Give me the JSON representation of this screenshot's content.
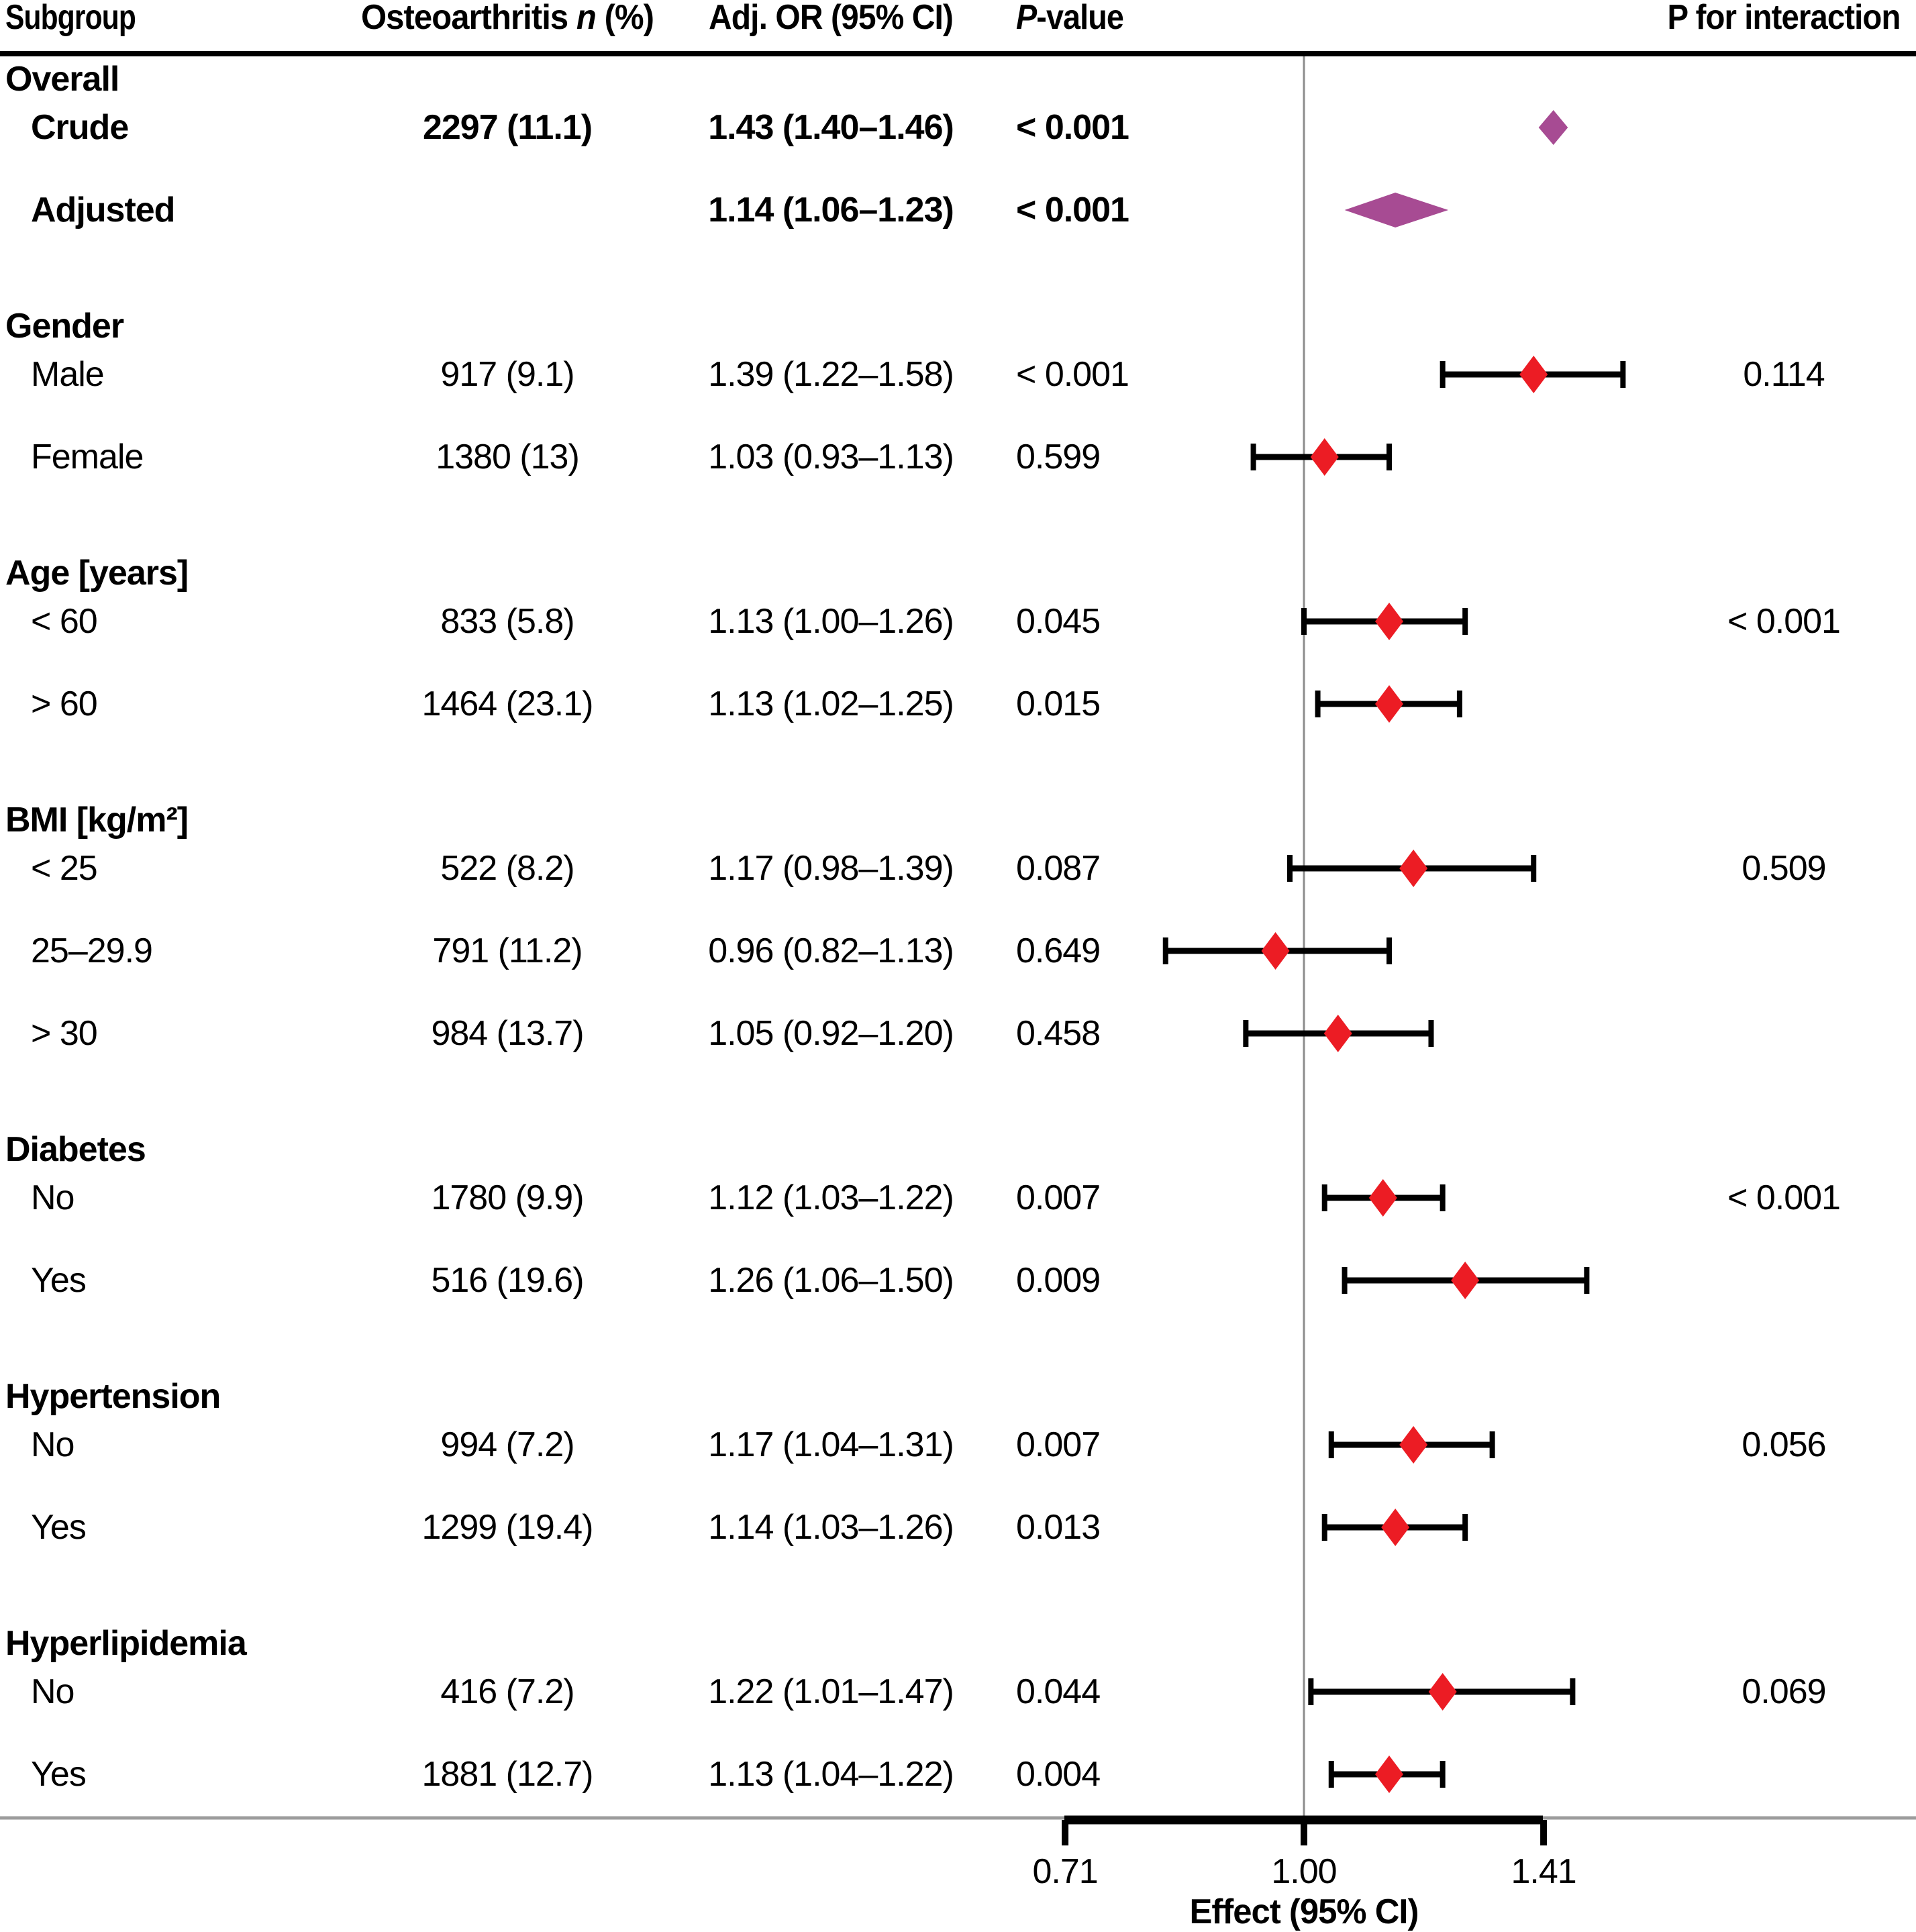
{
  "columns": {
    "subgroup": "Subgroup",
    "n_pre": "Osteoarthritis ",
    "n_italic": "n",
    "n_post": " (%)",
    "or": "Adj. OR (95% CI)",
    "p_italic": "P",
    "p_post": "-value",
    "p_interaction": "P for interaction"
  },
  "colors": {
    "marker_red": "#EC1C24",
    "summary_purple": "#A74B93",
    "ref_line": "#8C8C8C",
    "bottom_rule": "#9C9C9C",
    "top_rule": "#000000",
    "ci_black": "#000000",
    "text": "#000000"
  },
  "chart_data": {
    "type": "forest",
    "title": "",
    "xlabel": "Effect (95% CI)",
    "x_scale": "log",
    "ref_line": 1.0,
    "x_ticks": [
      0.71,
      1.0,
      1.41
    ],
    "x_tick_labels": [
      "0.71",
      "1.00",
      "1.41"
    ],
    "legend": "none",
    "grid": "off",
    "groups": [
      {
        "label": "Overall",
        "rows": [
          {
            "label": "Crude",
            "n": "2297 (11.1)",
            "or_text": "1.43 (1.40–1.46)",
            "or": 1.43,
            "lo": 1.4,
            "hi": 1.46,
            "p": "< 0.001",
            "p_interaction": "",
            "style": "summary",
            "bold": true
          },
          {
            "label": "Adjusted",
            "n": "",
            "or_text": "1.14 (1.06–1.23)",
            "or": 1.14,
            "lo": 1.06,
            "hi": 1.23,
            "p": "< 0.001",
            "p_interaction": "",
            "style": "summary",
            "bold": true
          }
        ]
      },
      {
        "label": "Gender",
        "rows": [
          {
            "label": "Male",
            "n": "917 (9.1)",
            "or_text": "1.39 (1.22–1.58)",
            "or": 1.39,
            "lo": 1.22,
            "hi": 1.58,
            "p": "< 0.001",
            "p_interaction": "0.114",
            "style": "point",
            "bold": false
          },
          {
            "label": "Female",
            "n": "1380 (13)",
            "or_text": "1.03 (0.93–1.13)",
            "or": 1.03,
            "lo": 0.93,
            "hi": 1.13,
            "p": "0.599",
            "p_interaction": "",
            "style": "point",
            "bold": false
          }
        ]
      },
      {
        "label": "Age [years]",
        "rows": [
          {
            "label": "< 60",
            "n": "833 (5.8)",
            "or_text": "1.13 (1.00–1.26)",
            "or": 1.13,
            "lo": 1.0,
            "hi": 1.26,
            "p": "0.045",
            "p_interaction": "< 0.001",
            "style": "point",
            "bold": false
          },
          {
            "label": "> 60",
            "n": "1464 (23.1)",
            "or_text": "1.13 (1.02–1.25)",
            "or": 1.13,
            "lo": 1.02,
            "hi": 1.25,
            "p": "0.015",
            "p_interaction": "",
            "style": "point",
            "bold": false
          }
        ]
      },
      {
        "label": "BMI [kg/m²]",
        "rows": [
          {
            "label": "< 25",
            "n": "522 (8.2)",
            "or_text": "1.17 (0.98–1.39)",
            "or": 1.17,
            "lo": 0.98,
            "hi": 1.39,
            "p": "0.087",
            "p_interaction": "0.509",
            "style": "point",
            "bold": false
          },
          {
            "label": "25–29.9",
            "n": "791 (11.2)",
            "or_text": "0.96 (0.82–1.13)",
            "or": 0.96,
            "lo": 0.82,
            "hi": 1.13,
            "p": "0.649",
            "p_interaction": "",
            "style": "point",
            "bold": false
          },
          {
            "label": "> 30",
            "n": "984 (13.7)",
            "or_text": "1.05 (0.92–1.20)",
            "or": 1.05,
            "lo": 0.92,
            "hi": 1.2,
            "p": "0.458",
            "p_interaction": "",
            "style": "point",
            "bold": false
          }
        ]
      },
      {
        "label": "Diabetes",
        "rows": [
          {
            "label": "No",
            "n": "1780 (9.9)",
            "or_text": "1.12 (1.03–1.22)",
            "or": 1.12,
            "lo": 1.03,
            "hi": 1.22,
            "p": "0.007",
            "p_interaction": "< 0.001",
            "style": "point",
            "bold": false
          },
          {
            "label": "Yes",
            "n": "516 (19.6)",
            "or_text": "1.26 (1.06–1.50)",
            "or": 1.26,
            "lo": 1.06,
            "hi": 1.5,
            "p": "0.009",
            "p_interaction": "",
            "style": "point",
            "bold": false
          }
        ]
      },
      {
        "label": "Hypertension",
        "rows": [
          {
            "label": "No",
            "n": "994 (7.2)",
            "or_text": "1.17 (1.04–1.31)",
            "or": 1.17,
            "lo": 1.04,
            "hi": 1.31,
            "p": "0.007",
            "p_interaction": "0.056",
            "style": "point",
            "bold": false
          },
          {
            "label": "Yes",
            "n": "1299 (19.4)",
            "or_text": "1.14 (1.03–1.26)",
            "or": 1.14,
            "lo": 1.03,
            "hi": 1.26,
            "p": "0.013",
            "p_interaction": "",
            "style": "point",
            "bold": false
          }
        ]
      },
      {
        "label": "Hyperlipidemia",
        "rows": [
          {
            "label": "No",
            "n": "416 (7.2)",
            "or_text": "1.22 (1.01–1.47)",
            "or": 1.22,
            "lo": 1.01,
            "hi": 1.47,
            "p": "0.044",
            "p_interaction": "0.069",
            "style": "point",
            "bold": false
          },
          {
            "label": "Yes",
            "n": "1881 (12.7)",
            "or_text": "1.13 (1.04–1.22)",
            "or": 1.13,
            "lo": 1.04,
            "hi": 1.22,
            "p": "0.004",
            "p_interaction": "",
            "style": "point",
            "bold": false
          }
        ]
      }
    ]
  }
}
